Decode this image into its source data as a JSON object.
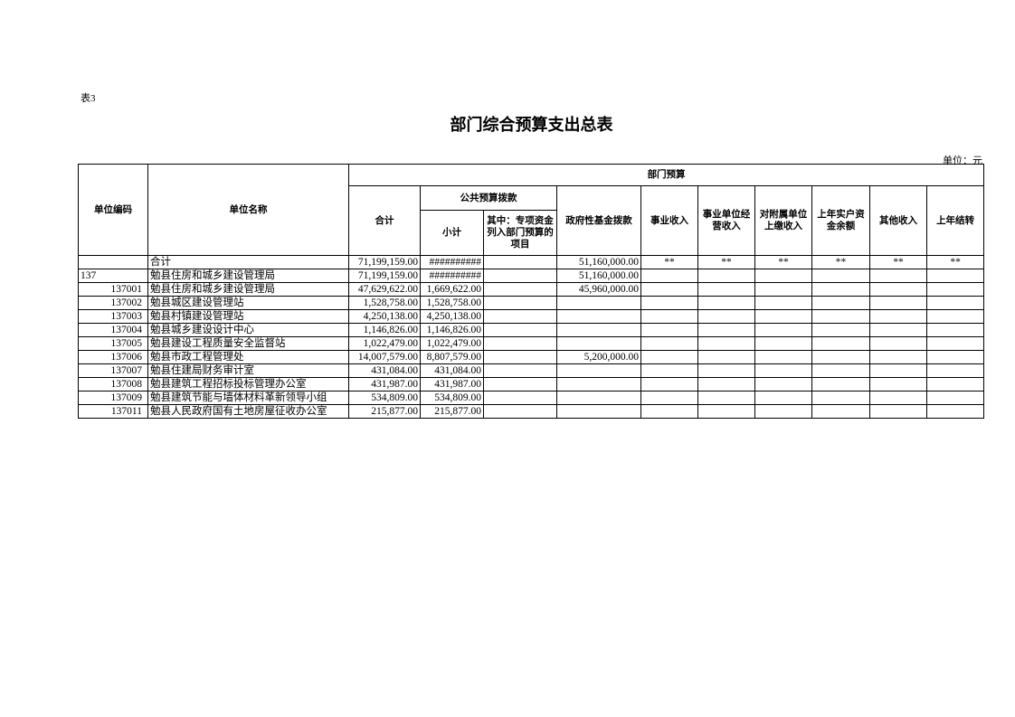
{
  "doc": {
    "tag": "表3",
    "title": "部门综合预算支出总表",
    "unit": "单位：元"
  },
  "headers": {
    "code": "单位编码",
    "name": "单位名称",
    "dept_budget": "部门预算",
    "total": "合计",
    "public": "公共预算拨款",
    "subtotal": "小计",
    "special": "其中：专项资金列入部门预算的项目",
    "gov_fund": "政府性基金拨款",
    "career_income": "事业收入",
    "operating_income": "事业单位经营收入",
    "subsidiary_income": "对附属单位上缴收入",
    "prev_balance": "上年实户资金余额",
    "other_income": "其他收入",
    "carryover": "上年结转"
  },
  "rows": [
    {
      "code": "",
      "name": "合计",
      "total": "71,199,159.00",
      "subtotal": "##########",
      "special": "",
      "gov_fund": "51,160,000.00",
      "c1": "**",
      "c2": "**",
      "c3": "**",
      "c4": "**",
      "c5": "**",
      "c6": "**"
    },
    {
      "code": "137",
      "name": "勉县住房和城乡建设管理局",
      "total": "71,199,159.00",
      "subtotal": "##########",
      "special": "",
      "gov_fund": "51,160,000.00",
      "c1": "",
      "c2": "",
      "c3": "",
      "c4": "",
      "c5": "",
      "c6": ""
    },
    {
      "code": "137001",
      "name": "勉县住房和城乡建设管理局",
      "total": "47,629,622.00",
      "subtotal": "1,669,622.00",
      "special": "",
      "gov_fund": "45,960,000.00",
      "c1": "",
      "c2": "",
      "c3": "",
      "c4": "",
      "c5": "",
      "c6": ""
    },
    {
      "code": "137002",
      "name": "勉县城区建设管理站",
      "total": "1,528,758.00",
      "subtotal": "1,528,758.00",
      "special": "",
      "gov_fund": "",
      "c1": "",
      "c2": "",
      "c3": "",
      "c4": "",
      "c5": "",
      "c6": ""
    },
    {
      "code": "137003",
      "name": "勉县村镇建设管理站",
      "total": "4,250,138.00",
      "subtotal": "4,250,138.00",
      "special": "",
      "gov_fund": "",
      "c1": "",
      "c2": "",
      "c3": "",
      "c4": "",
      "c5": "",
      "c6": ""
    },
    {
      "code": "137004",
      "name": "勉县城乡建设设计中心",
      "total": "1,146,826.00",
      "subtotal": "1,146,826.00",
      "special": "",
      "gov_fund": "",
      "c1": "",
      "c2": "",
      "c3": "",
      "c4": "",
      "c5": "",
      "c6": ""
    },
    {
      "code": "137005",
      "name": "勉县建设工程质量安全监督站",
      "total": "1,022,479.00",
      "subtotal": "1,022,479.00",
      "special": "",
      "gov_fund": "",
      "c1": "",
      "c2": "",
      "c3": "",
      "c4": "",
      "c5": "",
      "c6": ""
    },
    {
      "code": "137006",
      "name": "勉县市政工程管理处",
      "total": "14,007,579.00",
      "subtotal": "8,807,579.00",
      "special": "",
      "gov_fund": "5,200,000.00",
      "c1": "",
      "c2": "",
      "c3": "",
      "c4": "",
      "c5": "",
      "c6": ""
    },
    {
      "code": "137007",
      "name": "勉县住建局财务审计室",
      "total": "431,084.00",
      "subtotal": "431,084.00",
      "special": "",
      "gov_fund": "",
      "c1": "",
      "c2": "",
      "c3": "",
      "c4": "",
      "c5": "",
      "c6": ""
    },
    {
      "code": "137008",
      "name": "勉县建筑工程招标投标管理办公室",
      "total": "431,987.00",
      "subtotal": "431,987.00",
      "special": "",
      "gov_fund": "",
      "c1": "",
      "c2": "",
      "c3": "",
      "c4": "",
      "c5": "",
      "c6": ""
    },
    {
      "code": "137009",
      "name": "勉县建筑节能与墙体材料革新领导小组",
      "total": "534,809.00",
      "subtotal": "534,809.00",
      "special": "",
      "gov_fund": "",
      "c1": "",
      "c2": "",
      "c3": "",
      "c4": "",
      "c5": "",
      "c6": ""
    },
    {
      "code": "137011",
      "name": "勉县人民政府国有土地房屋征收办公室",
      "total": "215,877.00",
      "subtotal": "215,877.00",
      "special": "",
      "gov_fund": "",
      "c1": "",
      "c2": "",
      "c3": "",
      "c4": "",
      "c5": "",
      "c6": ""
    }
  ]
}
